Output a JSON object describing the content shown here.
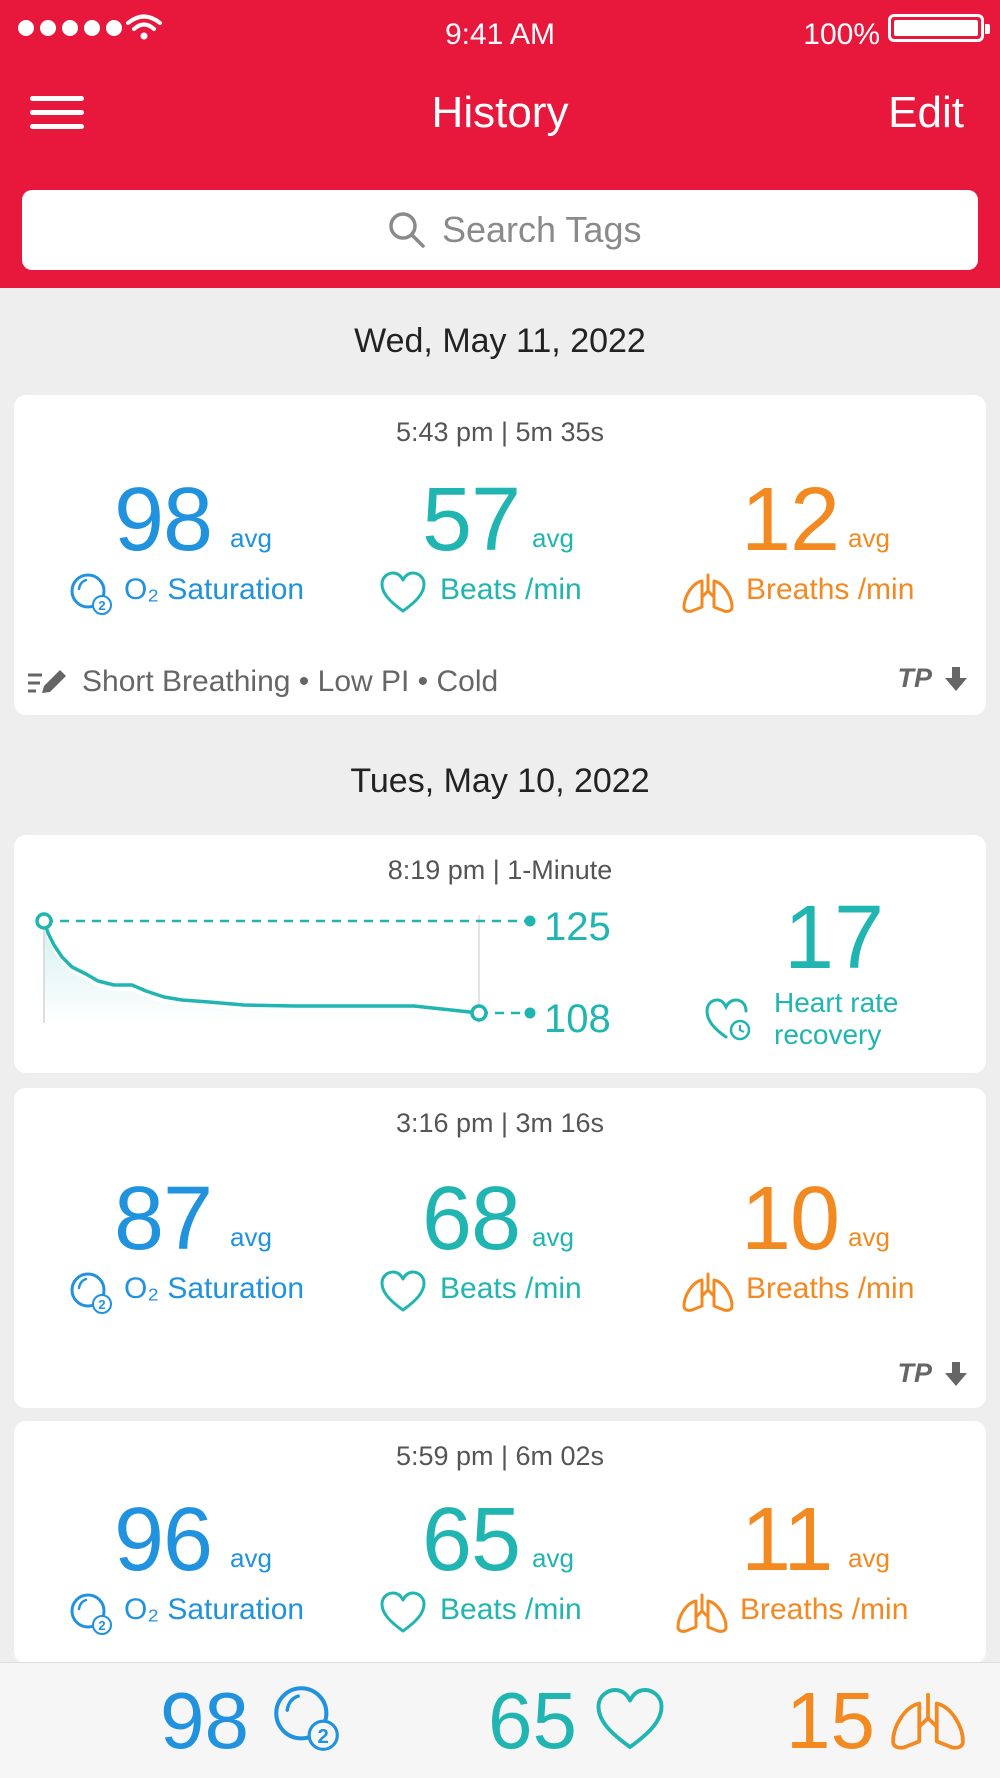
{
  "status_bar": {
    "time": "9:41 AM",
    "battery": "100%"
  },
  "header": {
    "title": "History",
    "edit_label": "Edit",
    "menu_icon": "hamburger-menu-icon"
  },
  "search": {
    "placeholder": "Search Tags"
  },
  "colors": {
    "header": "#e8173c",
    "spo2": "#2192de",
    "pulse": "#20b5b0",
    "resp": "#f28a21"
  },
  "groups": [
    {
      "date": "Wed, May 11, 2022",
      "sessions": [
        {
          "time": "5:43 pm | 5m 35s",
          "spo2": "98",
          "pulse": "57",
          "resp": "12",
          "avg": "avg",
          "spo2_label": "O₂ Saturation",
          "pulse_label": "Beats /min",
          "resp_label": "Breaths /min",
          "tags": "Short Breathing • Low PI • Cold",
          "badge": "TP"
        }
      ]
    },
    {
      "date": "Tues, May 10, 2022",
      "sessions": [
        {
          "time": "8:19 pm | 1-Minute",
          "type": "heart-rate-recovery",
          "start_value": "125",
          "end_value": "108",
          "recovery_value": "17",
          "recovery_label_line1": "Heart rate",
          "recovery_label_line2": "recovery"
        },
        {
          "time": "3:16 pm | 3m 16s",
          "spo2": "87",
          "pulse": "68",
          "resp": "10",
          "avg": "avg",
          "spo2_label": "O₂ Saturation",
          "pulse_label": "Beats /min",
          "resp_label": "Breaths /min",
          "badge": "TP"
        },
        {
          "time": "5:59 pm | 6m 02s",
          "spo2": "96",
          "pulse": "65",
          "resp": "11",
          "avg": "avg",
          "spo2_label": "O₂ Saturation",
          "pulse_label": "Beats /min",
          "resp_label": "Breaths /min"
        }
      ]
    }
  ],
  "footer": {
    "spo2": "98",
    "pulse": "65",
    "resp": "15"
  }
}
